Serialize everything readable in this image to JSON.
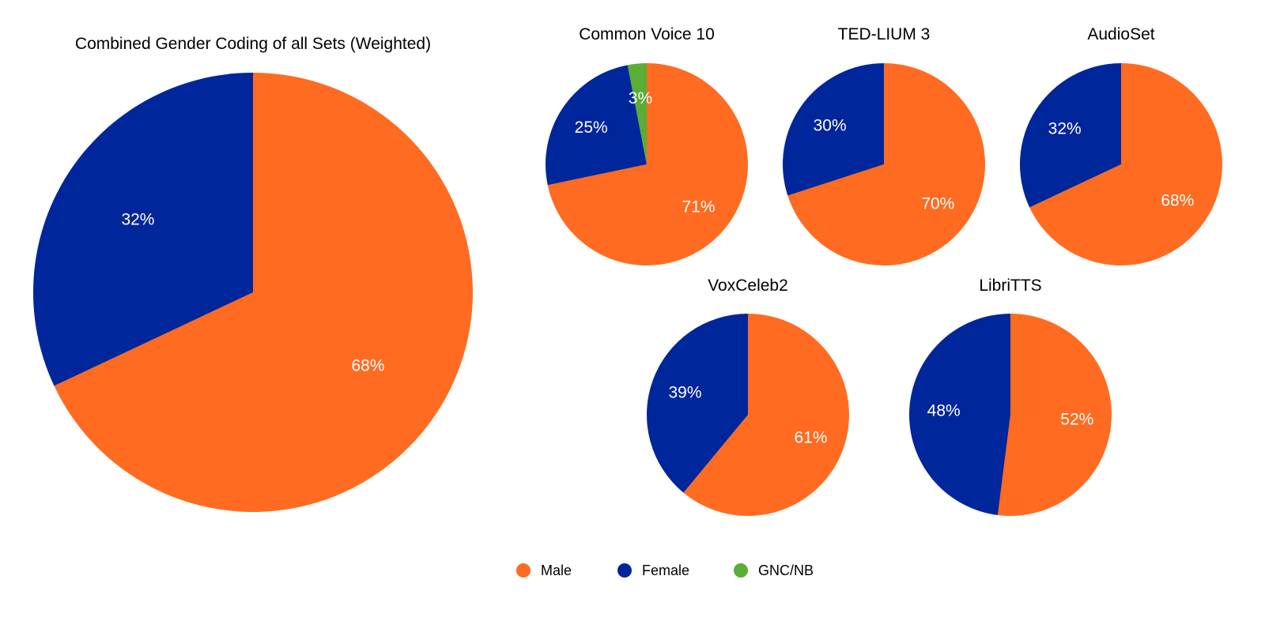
{
  "colors": {
    "Male": "#ff6b21",
    "Female": "#00269b",
    "GNC/NB": "#5aad35"
  },
  "legend": [
    {
      "name": "Male",
      "color": "#ff6b21"
    },
    {
      "name": "Female",
      "color": "#00269b"
    },
    {
      "name": "GNC/NB",
      "color": "#5aad35"
    }
  ],
  "chart_data": [
    {
      "type": "pie",
      "title": "Combined Gender Coding of all Sets (Weighted)",
      "slices": [
        {
          "name": "Male",
          "value": 68,
          "label": "68%"
        },
        {
          "name": "Female",
          "value": 32,
          "label": "32%"
        }
      ]
    },
    {
      "type": "pie",
      "title": "Common Voice 10",
      "slices": [
        {
          "name": "Male",
          "value": 71,
          "label": "71%"
        },
        {
          "name": "Female",
          "value": 25,
          "label": "25%"
        },
        {
          "name": "GNC/NB",
          "value": 3,
          "label": "3%"
        }
      ]
    },
    {
      "type": "pie",
      "title": "TED-LIUM 3",
      "slices": [
        {
          "name": "Male",
          "value": 70,
          "label": "70%"
        },
        {
          "name": "Female",
          "value": 30,
          "label": "30%"
        }
      ]
    },
    {
      "type": "pie",
      "title": "AudioSet",
      "slices": [
        {
          "name": "Male",
          "value": 68,
          "label": "68%"
        },
        {
          "name": "Female",
          "value": 32,
          "label": "32%"
        }
      ]
    },
    {
      "type": "pie",
      "title": "VoxCeleb2",
      "slices": [
        {
          "name": "Male",
          "value": 61,
          "label": "61%"
        },
        {
          "name": "Female",
          "value": 39,
          "label": "39%"
        }
      ]
    },
    {
      "type": "pie",
      "title": "LibriTTS",
      "slices": [
        {
          "name": "Male",
          "value": 52,
          "label": "52%"
        },
        {
          "name": "Female",
          "value": 48,
          "label": "48%"
        }
      ]
    }
  ]
}
